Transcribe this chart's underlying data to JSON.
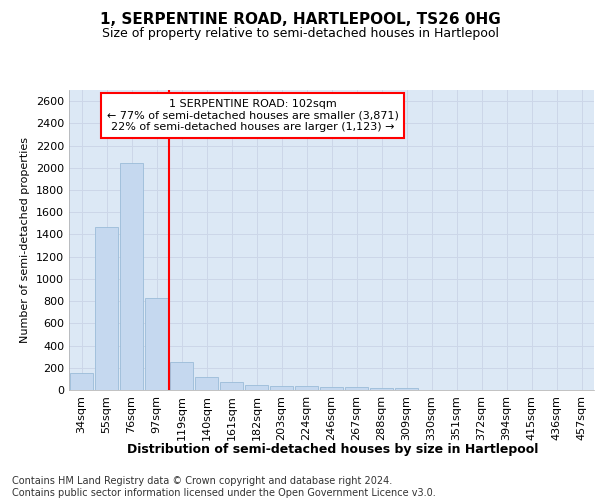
{
  "title1": "1, SERPENTINE ROAD, HARTLEPOOL, TS26 0HG",
  "title2": "Size of property relative to semi-detached houses in Hartlepool",
  "xlabel": "Distribution of semi-detached houses by size in Hartlepool",
  "ylabel": "Number of semi-detached properties",
  "categories": [
    "34sqm",
    "55sqm",
    "76sqm",
    "97sqm",
    "119sqm",
    "140sqm",
    "161sqm",
    "182sqm",
    "203sqm",
    "224sqm",
    "246sqm",
    "267sqm",
    "288sqm",
    "309sqm",
    "330sqm",
    "351sqm",
    "372sqm",
    "394sqm",
    "415sqm",
    "436sqm",
    "457sqm"
  ],
  "values": [
    155,
    1470,
    2040,
    830,
    255,
    115,
    68,
    43,
    35,
    35,
    30,
    25,
    22,
    17,
    0,
    0,
    0,
    0,
    0,
    0,
    0
  ],
  "bar_color": "#c5d8ef",
  "bar_edge_color": "#9bbcd8",
  "highlight_line_color": "red",
  "annotation_text": "1 SERPENTINE ROAD: 102sqm\n← 77% of semi-detached houses are smaller (3,871)\n22% of semi-detached houses are larger (1,123) →",
  "annotation_box_facecolor": "white",
  "annotation_box_edgecolor": "red",
  "ylim": [
    0,
    2700
  ],
  "yticks": [
    0,
    200,
    400,
    600,
    800,
    1000,
    1200,
    1400,
    1600,
    1800,
    2000,
    2200,
    2400,
    2600
  ],
  "grid_color": "#ccd6e8",
  "background_color": "#dce8f5",
  "footer_text": "Contains HM Land Registry data © Crown copyright and database right 2024.\nContains public sector information licensed under the Open Government Licence v3.0.",
  "title1_fontsize": 11,
  "title2_fontsize": 9,
  "xlabel_fontsize": 9,
  "ylabel_fontsize": 8,
  "tick_fontsize": 8,
  "annotation_fontsize": 8,
  "footer_fontsize": 7
}
